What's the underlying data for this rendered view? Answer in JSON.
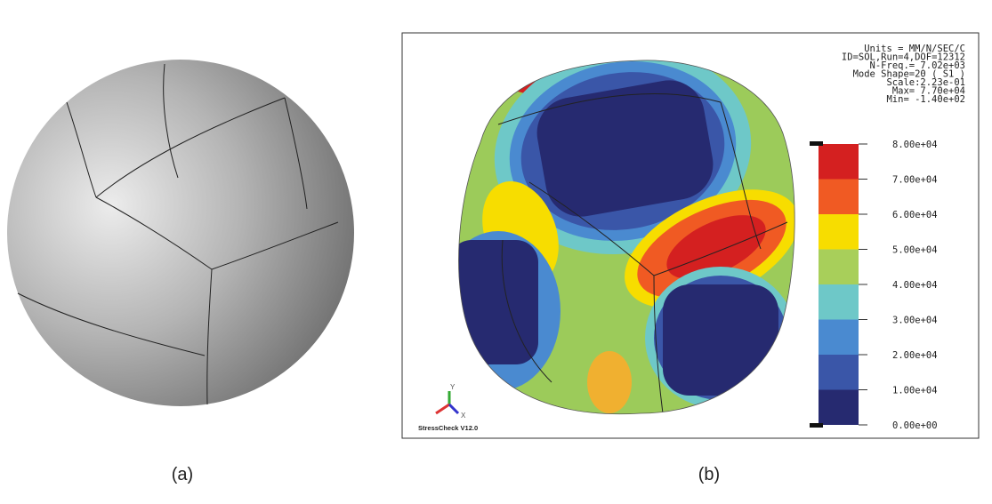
{
  "panels": [
    {
      "caption": "(a)"
    },
    {
      "caption": "(b)",
      "info": [
        "Units = MM/N/SEC/C",
        "ID=SOL,Run=4,DOF=12312",
        "N-Freq.=   7.02e+03",
        "Mode Shape=20 ( S1 )",
        "Scale:2.23e-01",
        "Max=  7.70e+04",
        "Min=  -1.40e+02"
      ],
      "colorbar": {
        "labels": [
          "8.00e+04",
          "7.00e+04",
          "6.00e+04",
          "5.00e+04",
          "4.00e+04",
          "3.00e+04",
          "2.00e+04",
          "1.00e+04",
          "0.00e+00"
        ]
      },
      "triad": {
        "y": "Y",
        "x": "X"
      },
      "software": "StressCheck V12.0"
    }
  ]
}
